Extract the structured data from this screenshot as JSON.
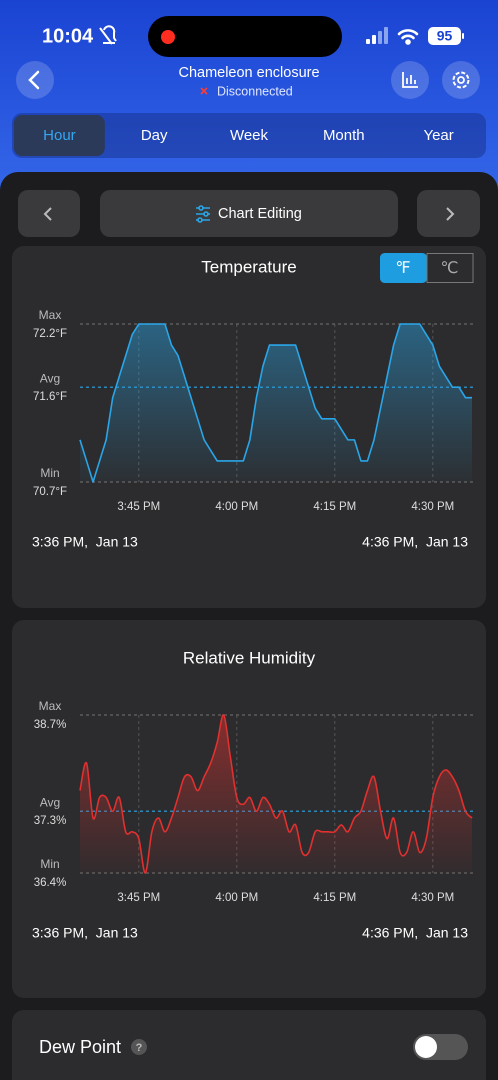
{
  "status_bar": {
    "time": "10:04",
    "battery": "95"
  },
  "header": {
    "title": "Chameleon enclosure",
    "status": "Disconnected"
  },
  "tabs": {
    "items": [
      "Hour",
      "Day",
      "Week",
      "Month",
      "Year"
    ],
    "selected": 0
  },
  "toolbar": {
    "label": "Chart Editing"
  },
  "unit_toggle": {
    "options": [
      "℉",
      "℃"
    ],
    "selected": 0
  },
  "chart_data": [
    {
      "type": "line",
      "title": "Temperature",
      "color": "#2aa6e8",
      "curve": "linear",
      "x": [
        "3:36 PM",
        "3:37 PM",
        "3:38 PM",
        "3:39 PM",
        "3:40 PM",
        "3:41 PM",
        "3:42 PM",
        "3:43 PM",
        "3:44 PM",
        "3:45 PM",
        "3:46 PM",
        "3:47 PM",
        "3:48 PM",
        "3:49 PM",
        "3:50 PM",
        "3:51 PM",
        "3:52 PM",
        "3:53 PM",
        "3:54 PM",
        "3:55 PM",
        "3:56 PM",
        "3:57 PM",
        "3:58 PM",
        "3:59 PM",
        "4:00 PM",
        "4:01 PM",
        "4:02 PM",
        "4:03 PM",
        "4:04 PM",
        "4:05 PM",
        "4:06 PM",
        "4:07 PM",
        "4:08 PM",
        "4:09 PM",
        "4:10 PM",
        "4:11 PM",
        "4:12 PM",
        "4:13 PM",
        "4:14 PM",
        "4:15 PM",
        "4:16 PM",
        "4:17 PM",
        "4:18 PM",
        "4:19 PM",
        "4:20 PM",
        "4:21 PM",
        "4:22 PM",
        "4:23 PM",
        "4:24 PM",
        "4:25 PM",
        "4:26 PM",
        "4:27 PM",
        "4:28 PM",
        "4:29 PM",
        "4:30 PM",
        "4:31 PM",
        "4:32 PM",
        "4:33 PM",
        "4:34 PM",
        "4:35 PM",
        "4:36 PM"
      ],
      "values": [
        71.1,
        70.9,
        70.7,
        70.9,
        71.1,
        71.5,
        71.7,
        71.9,
        72.1,
        72.2,
        72.2,
        72.2,
        72.2,
        72.2,
        72.0,
        71.9,
        71.7,
        71.5,
        71.3,
        71.1,
        71.0,
        70.9,
        70.9,
        70.9,
        70.9,
        70.9,
        71.1,
        71.5,
        71.8,
        72.0,
        72.0,
        72.0,
        72.0,
        72.0,
        71.8,
        71.6,
        71.4,
        71.3,
        71.3,
        71.3,
        71.2,
        71.1,
        71.1,
        70.9,
        70.9,
        71.1,
        71.4,
        71.7,
        72.0,
        72.2,
        72.2,
        72.2,
        72.2,
        72.1,
        72.0,
        71.8,
        71.7,
        71.6,
        71.6,
        71.5,
        71.5
      ],
      "xlim": [
        "3:36 PM",
        "4:36 PM"
      ],
      "xticks": [
        "3:45 PM",
        "4:00 PM",
        "4:15 PM",
        "4:30 PM"
      ],
      "ylim": [
        70.7,
        72.2
      ],
      "yticks": [
        {
          "value": 70.7,
          "label": "70.7°F"
        },
        {
          "value": 71.6,
          "label": "71.6°F"
        },
        {
          "value": 72.2,
          "label": "72.2°F"
        }
      ],
      "ytick_names": [
        "Min",
        "Avg",
        "Max"
      ],
      "grid_colors": [
        "#666666",
        "#2aa6e8",
        "#666666"
      ],
      "range_start": "3:36 PM,  Jan 13",
      "range_end": "4:36 PM,  Jan 13"
    },
    {
      "type": "line",
      "title": "Relative Humidity",
      "color": "#e0302f",
      "curve": "smooth",
      "x": [
        "3:36 PM",
        "3:37 PM",
        "3:38 PM",
        "3:39 PM",
        "3:40 PM",
        "3:41 PM",
        "3:42 PM",
        "3:43 PM",
        "3:44 PM",
        "3:45 PM",
        "3:46 PM",
        "3:47 PM",
        "3:48 PM",
        "3:49 PM",
        "3:50 PM",
        "3:51 PM",
        "3:52 PM",
        "3:53 PM",
        "3:54 PM",
        "3:55 PM",
        "3:56 PM",
        "3:57 PM",
        "3:58 PM",
        "3:59 PM",
        "4:00 PM",
        "4:01 PM",
        "4:02 PM",
        "4:03 PM",
        "4:04 PM",
        "4:05 PM",
        "4:06 PM",
        "4:07 PM",
        "4:08 PM",
        "4:09 PM",
        "4:10 PM",
        "4:11 PM",
        "4:12 PM",
        "4:13 PM",
        "4:14 PM",
        "4:15 PM",
        "4:16 PM",
        "4:17 PM",
        "4:18 PM",
        "4:19 PM",
        "4:20 PM",
        "4:21 PM",
        "4:22 PM",
        "4:23 PM",
        "4:24 PM",
        "4:25 PM",
        "4:26 PM",
        "4:27 PM",
        "4:28 PM",
        "4:29 PM",
        "4:30 PM",
        "4:31 PM",
        "4:32 PM",
        "4:33 PM",
        "4:34 PM",
        "4:35 PM",
        "4:36 PM"
      ],
      "values": [
        37.6,
        38.0,
        37.2,
        37.5,
        37.5,
        37.3,
        37.5,
        37.0,
        37.0,
        36.9,
        36.4,
        37.0,
        37.2,
        37.0,
        37.2,
        37.5,
        37.8,
        37.8,
        37.6,
        37.8,
        38.0,
        38.3,
        38.7,
        38.1,
        37.5,
        37.4,
        37.5,
        37.3,
        37.5,
        37.4,
        37.2,
        37.3,
        37.0,
        37.1,
        36.7,
        36.7,
        37.0,
        37.0,
        37.0,
        37.0,
        37.1,
        37.0,
        37.2,
        37.3,
        37.6,
        37.8,
        37.3,
        36.9,
        37.2,
        36.7,
        36.7,
        37.0,
        36.7,
        36.9,
        37.5,
        37.8,
        37.9,
        37.8,
        37.6,
        37.3,
        37.2
      ],
      "xlim": [
        "3:36 PM",
        "4:36 PM"
      ],
      "xticks": [
        "3:45 PM",
        "4:00 PM",
        "4:15 PM",
        "4:30 PM"
      ],
      "ylim": [
        36.4,
        38.7
      ],
      "yticks": [
        {
          "value": 36.4,
          "label": "36.4%"
        },
        {
          "value": 37.3,
          "label": "37.3%"
        },
        {
          "value": 38.7,
          "label": "38.7%"
        }
      ],
      "ytick_names": [
        "Min",
        "Avg",
        "Max"
      ],
      "grid_colors": [
        "#666666",
        "#2aa6e8",
        "#666666"
      ],
      "range_start": "3:36 PM,  Jan 13",
      "range_end": "4:36 PM,  Jan 13"
    }
  ],
  "dew_point": {
    "label": "Dew Point",
    "help": "?",
    "enabled": false
  }
}
